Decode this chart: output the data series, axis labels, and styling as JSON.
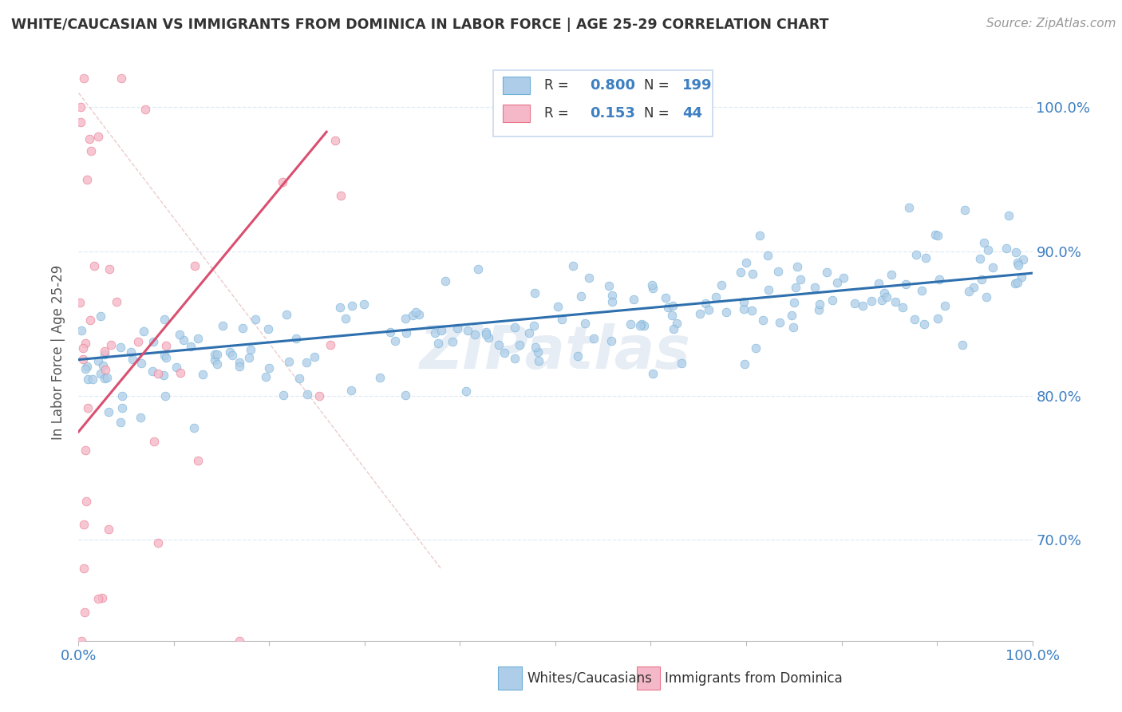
{
  "title": "WHITE/CAUCASIAN VS IMMIGRANTS FROM DOMINICA IN LABOR FORCE | AGE 25-29 CORRELATION CHART",
  "source": "Source: ZipAtlas.com",
  "ylabel": "In Labor Force | Age 25-29",
  "blue_R": 0.8,
  "blue_N": 199,
  "pink_R": 0.153,
  "pink_N": 44,
  "blue_color": "#aecde8",
  "blue_edge": "#6aaed6",
  "pink_color": "#f5b8c8",
  "pink_edge": "#e8748a",
  "blue_line_color": "#2e6fae",
  "pink_line_color": "#d95070",
  "text_blue": "#3d7fc1",
  "xlim": [
    0.0,
    1.0
  ],
  "ylim": [
    0.63,
    1.03
  ],
  "yticks": [
    0.7,
    0.8,
    0.9,
    1.0
  ],
  "yticklabels": [
    "70.0%",
    "80.0%",
    "90.0%",
    "100.0%"
  ],
  "background_color": "#ffffff",
  "grid_color": "#dce8f5",
  "watermark": "ZIPatlas",
  "ref_line_color": "#dddddd"
}
